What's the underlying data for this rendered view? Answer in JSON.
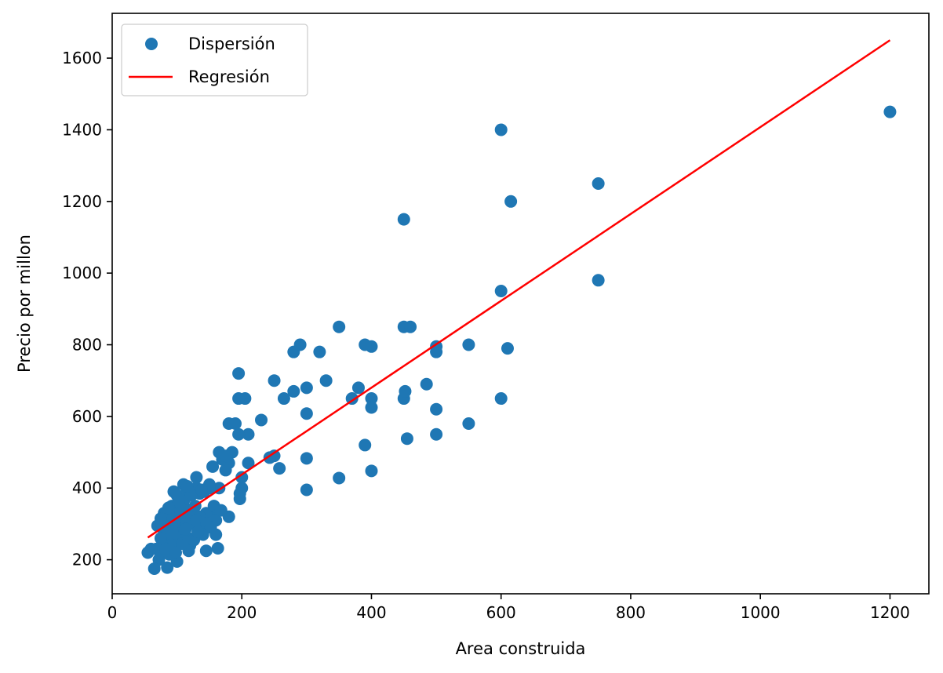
{
  "chart_data": {
    "type": "scatter",
    "title": "",
    "xlabel": "Area construida",
    "ylabel": "Precio por millon",
    "xlim": [
      0,
      1260
    ],
    "ylim": [
      105,
      1725
    ],
    "xticks": [
      0,
      200,
      400,
      600,
      800,
      1000,
      1200
    ],
    "yticks": [
      200,
      400,
      600,
      800,
      1000,
      1200,
      1400,
      1600
    ],
    "grid": false,
    "legend": {
      "placement": "top-left",
      "entries": [
        {
          "label": "Dispersión",
          "marker": "circle",
          "color": "#1f77b4"
        },
        {
          "label": "Regresión",
          "marker": "line",
          "color": "#ff0000"
        }
      ]
    },
    "series": [
      {
        "name": "Dispersión",
        "kind": "scatter",
        "color": "#1f77b4",
        "points": [
          [
            1200,
            1450
          ],
          [
            750,
            1250
          ],
          [
            750,
            980
          ],
          [
            600,
            1400
          ],
          [
            615,
            1200
          ],
          [
            600,
            950
          ],
          [
            600,
            650
          ],
          [
            610,
            790
          ],
          [
            550,
            800
          ],
          [
            550,
            580
          ],
          [
            500,
            795
          ],
          [
            500,
            780
          ],
          [
            500,
            620
          ],
          [
            500,
            550
          ],
          [
            485,
            690
          ],
          [
            450,
            1150
          ],
          [
            450,
            850
          ],
          [
            460,
            850
          ],
          [
            450,
            650
          ],
          [
            452,
            670
          ],
          [
            455,
            538
          ],
          [
            400,
            795
          ],
          [
            400,
            650
          ],
          [
            400,
            625
          ],
          [
            400,
            448
          ],
          [
            390,
            800
          ],
          [
            380,
            680
          ],
          [
            370,
            650
          ],
          [
            390,
            520
          ],
          [
            350,
            850
          ],
          [
            350,
            428
          ],
          [
            330,
            700
          ],
          [
            320,
            780
          ],
          [
            300,
            680
          ],
          [
            300,
            608
          ],
          [
            300,
            483
          ],
          [
            300,
            395
          ],
          [
            290,
            800
          ],
          [
            280,
            780
          ],
          [
            280,
            670
          ],
          [
            265,
            650
          ],
          [
            250,
            700
          ],
          [
            250,
            490
          ],
          [
            243,
            485
          ],
          [
            258,
            455
          ],
          [
            230,
            590
          ],
          [
            210,
            550
          ],
          [
            210,
            470
          ],
          [
            205,
            650
          ],
          [
            195,
            720
          ],
          [
            195,
            650
          ],
          [
            195,
            550
          ],
          [
            200,
            430
          ],
          [
            200,
            400
          ],
          [
            197,
            385
          ],
          [
            197,
            370
          ],
          [
            190,
            580
          ],
          [
            180,
            580
          ],
          [
            185,
            500
          ],
          [
            180,
            470
          ],
          [
            175,
            450
          ],
          [
            170,
            480
          ],
          [
            165,
            500
          ],
          [
            165,
            400
          ],
          [
            180,
            320
          ],
          [
            163,
            232
          ],
          [
            155,
            460
          ],
          [
            150,
            400
          ],
          [
            155,
            335
          ],
          [
            160,
            310
          ],
          [
            160,
            270
          ],
          [
            145,
            225
          ],
          [
            145,
            330
          ],
          [
            140,
            300
          ],
          [
            140,
            270
          ],
          [
            135,
            385
          ],
          [
            130,
            430
          ],
          [
            130,
            400
          ],
          [
            125,
            330
          ],
          [
            120,
            240
          ],
          [
            118,
            225
          ],
          [
            115,
            400
          ],
          [
            110,
            410
          ],
          [
            110,
            350
          ],
          [
            105,
            300
          ],
          [
            100,
            380
          ],
          [
            100,
            195
          ],
          [
            95,
            390
          ],
          [
            92,
            350
          ],
          [
            90,
            300
          ],
          [
            90,
            250
          ],
          [
            85,
            320
          ],
          [
            85,
            270
          ],
          [
            80,
            330
          ],
          [
            80,
            280
          ],
          [
            80,
            220
          ],
          [
            78,
            245
          ],
          [
            75,
            315
          ],
          [
            75,
            260
          ],
          [
            72,
            200
          ],
          [
            70,
            295
          ],
          [
            68,
            230
          ],
          [
            65,
            175
          ],
          [
            55,
            220
          ],
          [
            60,
            230
          ],
          [
            85,
            178
          ],
          [
            100,
            300
          ],
          [
            110,
            280
          ],
          [
            120,
            320
          ],
          [
            115,
            300
          ],
          [
            125,
            300
          ],
          [
            135,
            320
          ],
          [
            95,
            250
          ],
          [
            105,
            260
          ],
          [
            88,
            215
          ],
          [
            97,
            275
          ],
          [
            112,
            370
          ],
          [
            122,
            380
          ],
          [
            130,
            310
          ],
          [
            142,
            390
          ],
          [
            150,
            410
          ],
          [
            108,
            245
          ],
          [
            92,
            330
          ],
          [
            102,
            360
          ],
          [
            118,
            260
          ],
          [
            128,
            350
          ],
          [
            138,
            395
          ],
          [
            83,
            230
          ],
          [
            77,
            300
          ],
          [
            98,
            220
          ],
          [
            106,
            330
          ],
          [
            126,
            255
          ],
          [
            113,
            285
          ],
          [
            93,
            280
          ],
          [
            87,
            345
          ],
          [
            132,
            278
          ],
          [
            146,
            302
          ],
          [
            116,
            405
          ],
          [
            157,
            350
          ],
          [
            168,
            338
          ],
          [
            176,
            490
          ],
          [
            152,
            290
          ]
        ]
      },
      {
        "name": "Regresión",
        "kind": "line",
        "color": "#ff0000",
        "points": [
          [
            55,
            262
          ],
          [
            1200,
            1650
          ]
        ]
      }
    ]
  }
}
